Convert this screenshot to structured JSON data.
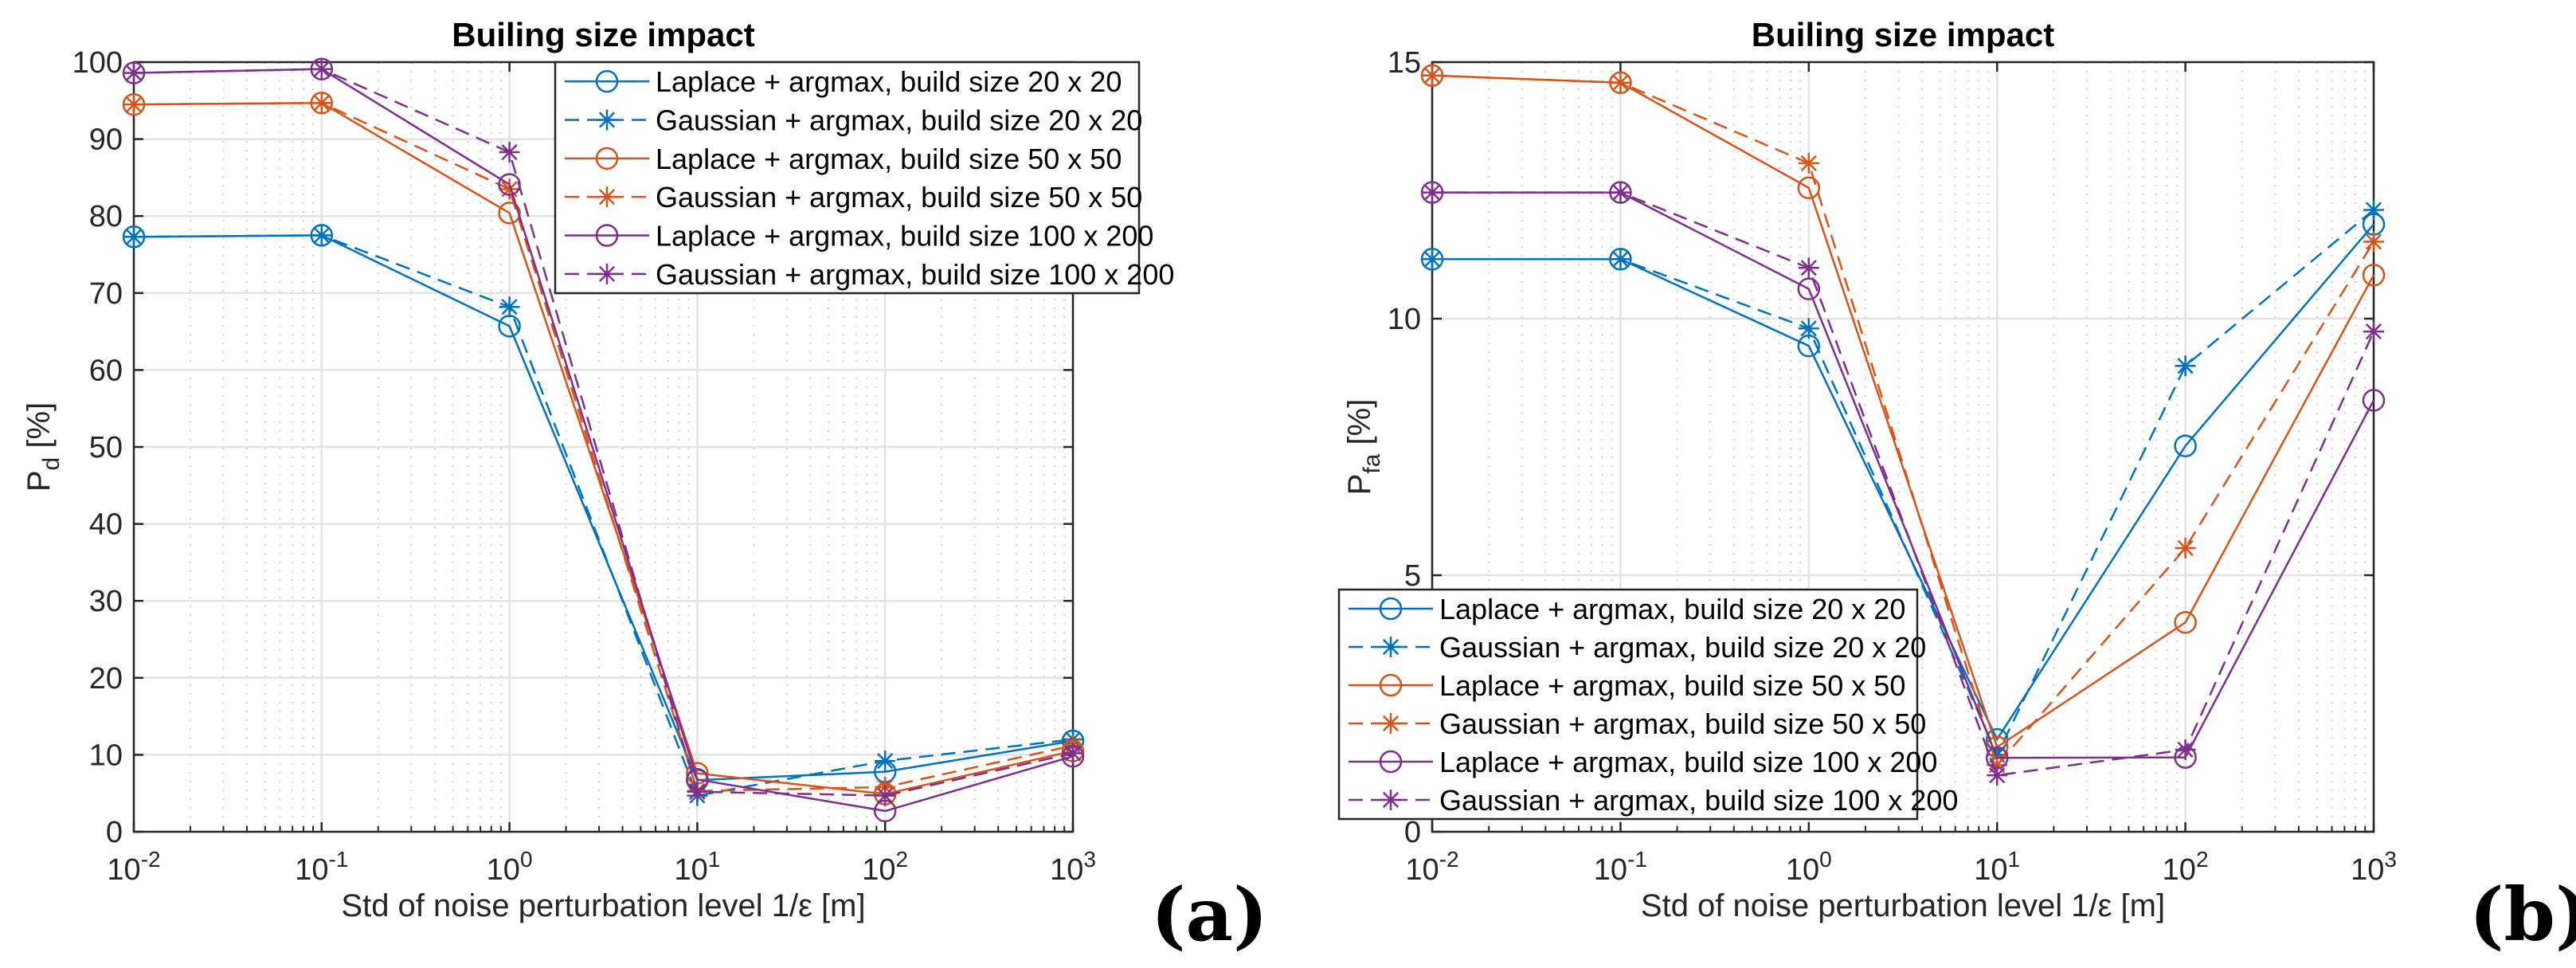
{
  "chart_data": [
    {
      "type": "line",
      "panel_label": "(a)",
      "title": "Builing size impact",
      "xlabel": "Std of noise perturbation level 1/ε [m]",
      "ylabel_main": "P",
      "ylabel_sub": "d",
      "ylabel_unit": "[%]",
      "xscale": "log",
      "xlim": [
        0.01,
        1000
      ],
      "ylim": [
        0,
        100
      ],
      "yticks": [
        0,
        10,
        20,
        30,
        40,
        50,
        60,
        70,
        80,
        90,
        100
      ],
      "xtick_exponents": [
        "-2",
        "-1",
        "0",
        "1",
        "2",
        "3"
      ],
      "xtick_base": "10",
      "grid": true,
      "legend_position": "top-right",
      "x": [
        0.01,
        0.1,
        1,
        10,
        100,
        1000
      ],
      "series": [
        {
          "name": "Laplace + argmax, build size 20 x 20",
          "color": "#0072BD",
          "style": "solid",
          "marker": "circle",
          "values": [
            77.3,
            77.5,
            65.7,
            6.7,
            7.8,
            11.8
          ]
        },
        {
          "name": "Gaussian + argmax, build size 20 x 20",
          "color": "#0072BD",
          "style": "dashed",
          "marker": "star",
          "values": [
            77.3,
            77.5,
            68.2,
            4.7,
            9.2,
            12.0
          ]
        },
        {
          "name": "Laplace + argmax, build size 50 x 50",
          "color": "#D95319",
          "style": "solid",
          "marker": "circle",
          "values": [
            94.5,
            94.7,
            80.4,
            7.6,
            4.9,
            10.5
          ]
        },
        {
          "name": "Gaussian + argmax, build size 50 x 50",
          "color": "#D95319",
          "style": "dashed",
          "marker": "star",
          "values": [
            94.5,
            94.7,
            83.5,
            5.3,
            5.8,
            11.2
          ]
        },
        {
          "name": "Laplace + argmax, build size 100 x 200",
          "color": "#7E2F8E",
          "style": "solid",
          "marker": "circle",
          "values": [
            98.6,
            99.1,
            84.1,
            6.8,
            2.7,
            9.8
          ]
        },
        {
          "name": "Gaussian + argmax, build size 100 x 200",
          "color": "#7E2F8E",
          "style": "dashed",
          "marker": "star",
          "values": [
            98.6,
            99.1,
            88.3,
            5.2,
            4.7,
            10.2
          ]
        }
      ]
    },
    {
      "type": "line",
      "panel_label": "(b)",
      "title": "Builing size impact",
      "xlabel": "Std of noise perturbation level 1/ε [m]",
      "ylabel_main": "P",
      "ylabel_sub": "fa",
      "ylabel_unit": "[%]",
      "xscale": "log",
      "xlim": [
        0.01,
        1000
      ],
      "ylim": [
        0,
        15
      ],
      "yticks": [
        0,
        5,
        10,
        15
      ],
      "xtick_exponents": [
        "-2",
        "-1",
        "0",
        "1",
        "2",
        "3"
      ],
      "xtick_base": "10",
      "grid": true,
      "legend_position": "bottom-left",
      "x": [
        0.01,
        0.1,
        1,
        10,
        100,
        1000
      ],
      "series": [
        {
          "name": "Laplace + argmax, build size 20 x 20",
          "color": "#0072BD",
          "style": "solid",
          "marker": "circle",
          "values": [
            11.16,
            11.16,
            9.47,
            1.8,
            7.52,
            11.84
          ]
        },
        {
          "name": "Gaussian + argmax, build size 20 x 20",
          "color": "#0072BD",
          "style": "dashed",
          "marker": "star",
          "values": [
            11.16,
            11.16,
            9.81,
            1.5,
            9.08,
            12.12
          ]
        },
        {
          "name": "Laplace + argmax, build size 50 x 50",
          "color": "#D95319",
          "style": "solid",
          "marker": "circle",
          "values": [
            14.74,
            14.6,
            12.55,
            1.65,
            4.08,
            10.85
          ]
        },
        {
          "name": "Gaussian + argmax, build size 50 x 50",
          "color": "#D95319",
          "style": "dashed",
          "marker": "star",
          "values": [
            14.74,
            14.6,
            13.03,
            1.3,
            5.53,
            11.5
          ]
        },
        {
          "name": "Laplace + argmax, build size 100 x 200",
          "color": "#7E2F8E",
          "style": "solid",
          "marker": "circle",
          "values": [
            12.46,
            12.46,
            10.58,
            1.44,
            1.45,
            8.41
          ]
        },
        {
          "name": "Gaussian + argmax, build size 100 x 200",
          "color": "#7E2F8E",
          "style": "dashed",
          "marker": "star",
          "values": [
            12.46,
            12.46,
            10.99,
            1.1,
            1.6,
            9.75
          ]
        }
      ]
    }
  ]
}
